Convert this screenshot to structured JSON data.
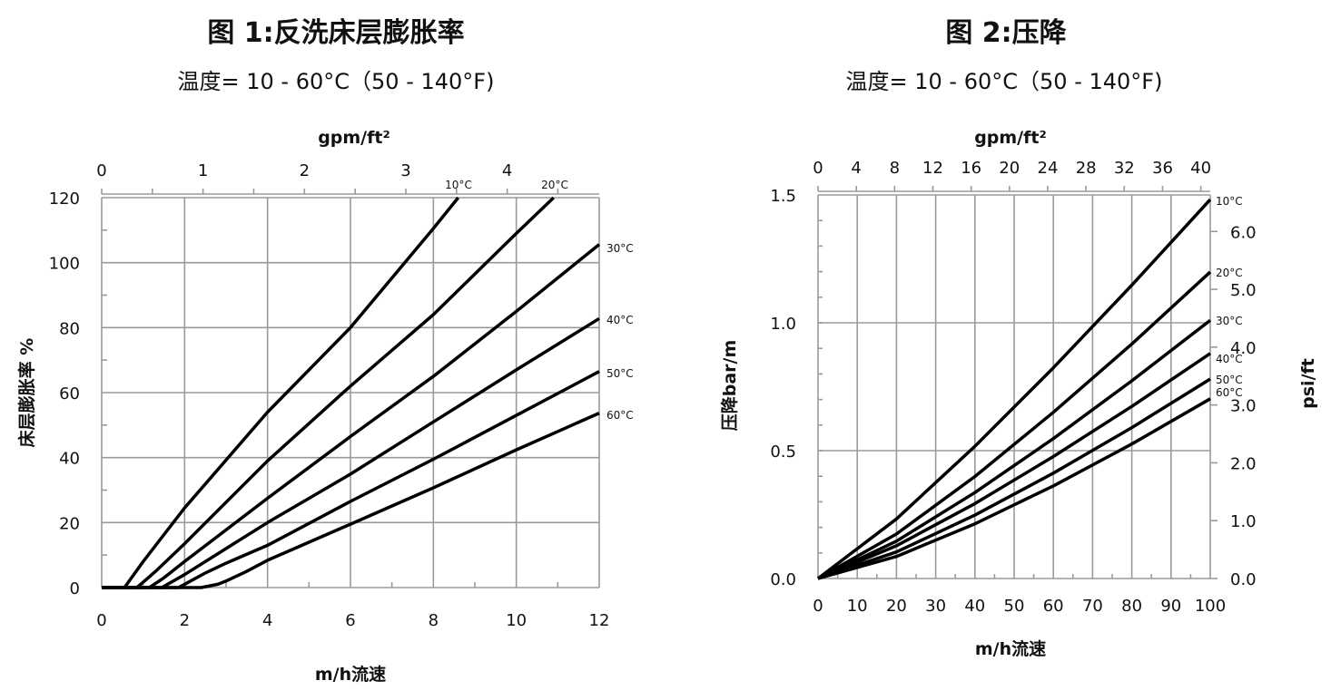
{
  "chart_data": [
    {
      "type": "line",
      "title": "图 1:反洗床层膨胀率",
      "subtitle": "温度= 10 - 60°C（50 - 140°F)",
      "xlabel": "m/h流速",
      "ylabel": "床层膨胀率 %",
      "x2label": "gpm/ft²",
      "xlim": [
        0,
        12
      ],
      "ylim": [
        0,
        120
      ],
      "xticks": [
        "0",
        "2",
        "4",
        "6",
        "8",
        "10",
        "12"
      ],
      "yticks": [
        "0",
        "20",
        "40",
        "60",
        "80",
        "100",
        "120"
      ],
      "x2ticks": [
        "0",
        "1",
        "2",
        "3",
        "4"
      ],
      "grid": true,
      "series": [
        {
          "name": "10°C",
          "x": [
            0,
            0.55,
            1,
            2,
            4,
            6,
            8,
            8.6
          ],
          "y": [
            0,
            0,
            8,
            24.5,
            54,
            80,
            110.5,
            120
          ]
        },
        {
          "name": "20°C",
          "x": [
            0,
            0.85,
            1.3,
            2,
            4,
            6,
            8,
            10,
            10.9
          ],
          "y": [
            0,
            0,
            5,
            13.5,
            39,
            62,
            84,
            109,
            120
          ]
        },
        {
          "name": "30°C",
          "x": [
            0,
            1.15,
            1.5,
            2,
            4,
            6,
            8,
            10,
            12
          ],
          "y": [
            0,
            0,
            3,
            8,
            27.5,
            46.5,
            65,
            85,
            105.6
          ]
        },
        {
          "name": "40°C",
          "x": [
            0,
            1.45,
            2,
            3,
            4,
            6,
            8,
            10,
            12
          ],
          "y": [
            0,
            0,
            4,
            12,
            20,
            34.9,
            51,
            67,
            82.8
          ]
        },
        {
          "name": "50°C",
          "x": [
            0,
            1.85,
            2,
            2.5,
            3,
            4,
            6,
            8,
            10,
            12
          ],
          "y": [
            0,
            0,
            1,
            4.5,
            7.5,
            13,
            26.5,
            39.5,
            53,
            66.5
          ]
        },
        {
          "name": "60°C",
          "x": [
            0,
            2.4,
            2.8,
            3,
            3.5,
            4,
            6,
            8,
            10,
            12
          ],
          "y": [
            0,
            0,
            1,
            2,
            5,
            8.4,
            19.5,
            30.7,
            42.4,
            53.7
          ]
        }
      ]
    },
    {
      "type": "line",
      "title": "图 2:压降",
      "subtitle": "温度= 10 - 60°C（50 - 140°F)",
      "xlabel": "m/h流速",
      "ylabel": "压降bar/m",
      "y2label": "psi/ft",
      "x2label": "gpm/ft²",
      "xlim": [
        0,
        100
      ],
      "ylim": [
        0,
        1.5
      ],
      "xticks": [
        "0",
        "10",
        "20",
        "30",
        "40",
        "50",
        "60",
        "70",
        "80",
        "90",
        "100"
      ],
      "yticks": [
        "0.0",
        "0.5",
        "1.0",
        "1.5"
      ],
      "x2ticks": [
        "0",
        "4",
        "8",
        "12",
        "16",
        "20",
        "24",
        "28",
        "32",
        "36",
        "40"
      ],
      "y2ticks": [
        "0.0",
        "1.0",
        "2.0",
        "3.0",
        "4.0",
        "5.0",
        "6.0"
      ],
      "grid": true,
      "series": [
        {
          "name": "10°C",
          "x": [
            0,
            20,
            40,
            60,
            80,
            100
          ],
          "y": [
            0,
            0.233,
            0.517,
            0.824,
            1.147,
            1.482
          ]
        },
        {
          "name": "20°C",
          "x": [
            0,
            20,
            40,
            60,
            80,
            100
          ],
          "y": [
            0,
            0.174,
            0.399,
            0.65,
            0.917,
            1.199
          ]
        },
        {
          "name": "30°C",
          "x": [
            0,
            20,
            40,
            60,
            80,
            100
          ],
          "y": [
            0,
            0.146,
            0.336,
            0.547,
            0.773,
            1.01
          ]
        },
        {
          "name": "40°C",
          "x": [
            0,
            20,
            40,
            60,
            80,
            100
          ],
          "y": [
            0,
            0.128,
            0.293,
            0.477,
            0.673,
            0.88
          ]
        },
        {
          "name": "50°C",
          "x": [
            0,
            20,
            40,
            60,
            80,
            100
          ],
          "y": [
            0,
            0.104,
            0.248,
            0.412,
            0.59,
            0.78
          ]
        },
        {
          "name": "60°C",
          "x": [
            0,
            20,
            40,
            60,
            80,
            100
          ],
          "y": [
            0,
            0.086,
            0.214,
            0.362,
            0.526,
            0.703
          ]
        }
      ]
    }
  ]
}
